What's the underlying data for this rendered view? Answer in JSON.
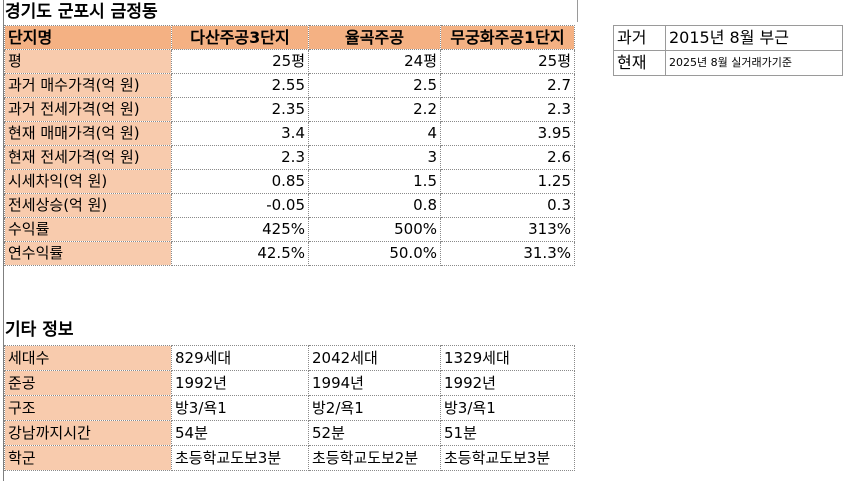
{
  "header": {
    "title": "경기도 군포시 금정동"
  },
  "main_table": {
    "label_header": "단지명",
    "columns": [
      "다산주공3단지",
      "율곡주공",
      "무궁화주공1단지"
    ],
    "rows": [
      {
        "label": "평",
        "values": [
          "25평",
          "24평",
          "25평"
        ]
      },
      {
        "label": "과거 매수가격(억 원)",
        "values": [
          "2.55",
          "2.5",
          "2.7"
        ]
      },
      {
        "label": "과거 전세가격(억 원)",
        "values": [
          "2.35",
          "2.2",
          "2.3"
        ]
      },
      {
        "label": "현재 매매가격(억 원)",
        "values": [
          "3.4",
          "4",
          "3.95"
        ]
      },
      {
        "label": "현재 전세가격(억 원)",
        "values": [
          "2.3",
          "3",
          "2.6"
        ]
      },
      {
        "label": "시세차익(억 원)",
        "values": [
          "0.85",
          "1.5",
          "1.25"
        ]
      },
      {
        "label": "전세상승(억 원)",
        "values": [
          "-0.05",
          "0.8",
          "0.3"
        ]
      },
      {
        "label": "수익률",
        "values": [
          "425%",
          "500%",
          "313%"
        ]
      },
      {
        "label": "연수익률",
        "values": [
          "42.5%",
          "50.0%",
          "31.3%"
        ]
      }
    ]
  },
  "info_section": {
    "title": "기타 정보",
    "rows": [
      {
        "label": "세대수",
        "values": [
          "829세대",
          "2042세대",
          "1329세대"
        ]
      },
      {
        "label": "준공",
        "values": [
          "1992년",
          "1994년",
          "1992년"
        ]
      },
      {
        "label": "구조",
        "values": [
          "방3/욕1",
          "방2/욕1",
          "방3/욕1"
        ]
      },
      {
        "label": "강남까지시간",
        "values": [
          "54분",
          "52분",
          "51분"
        ]
      },
      {
        "label": "학군",
        "values": [
          "초등학교도보3분",
          "초등학교도보2분",
          "초등학교도보3분"
        ]
      }
    ]
  },
  "side_table": {
    "rows": [
      {
        "label": "과거",
        "value": "2015년 8월 부근"
      },
      {
        "label": "현재",
        "value": "2025년 8월 실거래가기준"
      }
    ]
  },
  "colors": {
    "header_fill": "#f4b183",
    "label_fill": "#f8cbad"
  }
}
